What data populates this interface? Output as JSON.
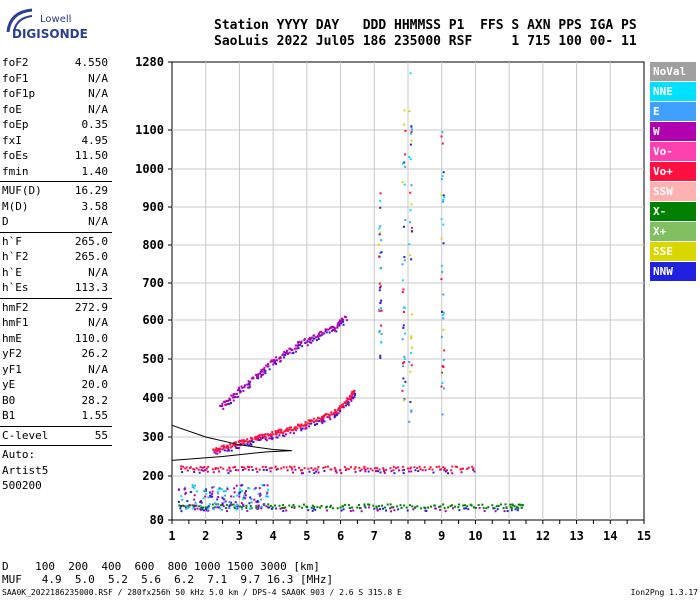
{
  "logo": {
    "line1": "Lowell",
    "line2": "DIGISONDE"
  },
  "header": {
    "row1": "Station YYYY DAY   DDD HHMMSS P1  FFS S AXN PPS IGA PS",
    "row2": "SaoLuis 2022 Jul05 186 235000 RSF     1 715 100 00- 11"
  },
  "params": [
    {
      "k": "foF2",
      "v": "4.550"
    },
    {
      "k": "foF1",
      "v": "N/A"
    },
    {
      "k": "foF1p",
      "v": "N/A"
    },
    {
      "k": "foE",
      "v": "N/A"
    },
    {
      "k": "foEp",
      "v": "0.35"
    },
    {
      "k": "fxI",
      "v": "4.95"
    },
    {
      "k": "foEs",
      "v": "11.50"
    },
    {
      "k": "fmin",
      "v": "1.40"
    },
    {
      "k": "MUF(D)",
      "v": "16.29"
    },
    {
      "k": "M(D)",
      "v": "3.58"
    },
    {
      "k": "D",
      "v": "N/A"
    },
    {
      "k": "h`F",
      "v": "265.0"
    },
    {
      "k": "h`F2",
      "v": "265.0"
    },
    {
      "k": "h`E",
      "v": "N/A"
    },
    {
      "k": "h`Es",
      "v": "113.3"
    },
    {
      "k": "hmF2",
      "v": "272.9"
    },
    {
      "k": "hmF1",
      "v": "N/A"
    },
    {
      "k": "hmE",
      "v": "110.0"
    },
    {
      "k": "yF2",
      "v": "26.2"
    },
    {
      "k": "yF1",
      "v": "N/A"
    },
    {
      "k": "yE",
      "v": "20.0"
    },
    {
      "k": "B0",
      "v": "28.2"
    },
    {
      "k": "B1",
      "v": "1.55"
    },
    {
      "k": "C-level",
      "v": "55"
    },
    {
      "k": "Auto:",
      "v": ""
    },
    {
      "k": "Artist5",
      "v": ""
    },
    {
      "k": "500200",
      "v": ""
    }
  ],
  "legend": [
    {
      "label": "NoVal",
      "color": "#a0a0a0"
    },
    {
      "label": "NNE",
      "color": "#00e0ff"
    },
    {
      "label": "E",
      "color": "#40a0ff"
    },
    {
      "label": "W",
      "color": "#b000b0"
    },
    {
      "label": "Vo-",
      "color": "#ff40b0"
    },
    {
      "label": "Vo+",
      "color": "#ff1040"
    },
    {
      "label": "SSW",
      "color": "#ffb0b0"
    },
    {
      "label": "X-",
      "color": "#008000"
    },
    {
      "label": "X+",
      "color": "#80c060"
    },
    {
      "label": "SSE",
      "color": "#d8d800"
    },
    {
      "label": "NNW",
      "color": "#2020e0"
    }
  ],
  "muf_table": {
    "d_row": "D    100  200  400  600  800 1000 1500 3000 [km]",
    "m_row": "MUF   4.9  5.0  5.2  5.6  6.2  7.1  9.7 16.3 [MHz]"
  },
  "footer": {
    "left": "SAA0K_2022186235000.RSF / 280fx256h 50 kHz 5.0 km / DPS-4 SAA0K 903 / 2.6 S 315.8 E",
    "right": "Ion2Png 1.3.17"
  },
  "chart_data": {
    "type": "scatter",
    "title": "",
    "xlabel": "",
    "ylabel": "",
    "xlim": [
      1,
      15
    ],
    "ylim": [
      80,
      1280
    ],
    "x_ticks": [
      "1",
      "2",
      "3",
      "4",
      "5",
      "6",
      "7",
      "8",
      "9",
      "10",
      "11",
      "12",
      "13",
      "14",
      "15"
    ],
    "y_ticks": [
      "80",
      "200",
      "300",
      "400",
      "500",
      "600",
      "700",
      "800",
      "900",
      "1000",
      "1100",
      "1280"
    ],
    "y_tick_values": [
      80,
      200,
      300,
      400,
      500,
      600,
      700,
      800,
      900,
      1000,
      1100,
      1280
    ],
    "traces": [
      {
        "name": "F-trace-o",
        "color": "#ff1040",
        "pts": [
          [
            2.2,
            270
          ],
          [
            2.5,
            275
          ],
          [
            2.8,
            282
          ],
          [
            3.1,
            290
          ],
          [
            3.4,
            298
          ],
          [
            3.7,
            305
          ],
          [
            4.0,
            312
          ],
          [
            4.3,
            318
          ],
          [
            4.6,
            325
          ],
          [
            4.9,
            335
          ],
          [
            5.2,
            345
          ],
          [
            5.5,
            355
          ],
          [
            5.8,
            365
          ],
          [
            6.0,
            380
          ],
          [
            6.2,
            400
          ],
          [
            6.4,
            420
          ]
        ]
      },
      {
        "name": "F-trace-2",
        "color": "#b000b0",
        "pts": [
          [
            2.4,
            380
          ],
          [
            2.8,
            410
          ],
          [
            3.2,
            440
          ],
          [
            3.6,
            470
          ],
          [
            4.0,
            500
          ],
          [
            4.4,
            520
          ],
          [
            4.8,
            545
          ],
          [
            5.2,
            560
          ],
          [
            5.6,
            575
          ],
          [
            5.9,
            590
          ],
          [
            6.1,
            610
          ]
        ]
      },
      {
        "name": "Es-trace",
        "color": "#ff1040",
        "pts": [
          [
            1.2,
            222
          ],
          [
            2,
            222
          ],
          [
            3,
            222
          ],
          [
            4,
            222
          ],
          [
            5,
            222
          ],
          [
            6,
            222
          ],
          [
            7,
            222
          ],
          [
            8,
            222
          ],
          [
            9,
            222
          ],
          [
            10,
            222
          ]
        ]
      },
      {
        "name": "E-low",
        "color": "#008000",
        "pts": [
          [
            1.2,
            120
          ],
          [
            2,
            120
          ],
          [
            3,
            120
          ],
          [
            4,
            120
          ],
          [
            5,
            120
          ],
          [
            6,
            120
          ],
          [
            7,
            120
          ],
          [
            8,
            120
          ],
          [
            9,
            120
          ],
          [
            10,
            120
          ],
          [
            11,
            120
          ],
          [
            11.4,
            120
          ]
        ]
      }
    ]
  }
}
